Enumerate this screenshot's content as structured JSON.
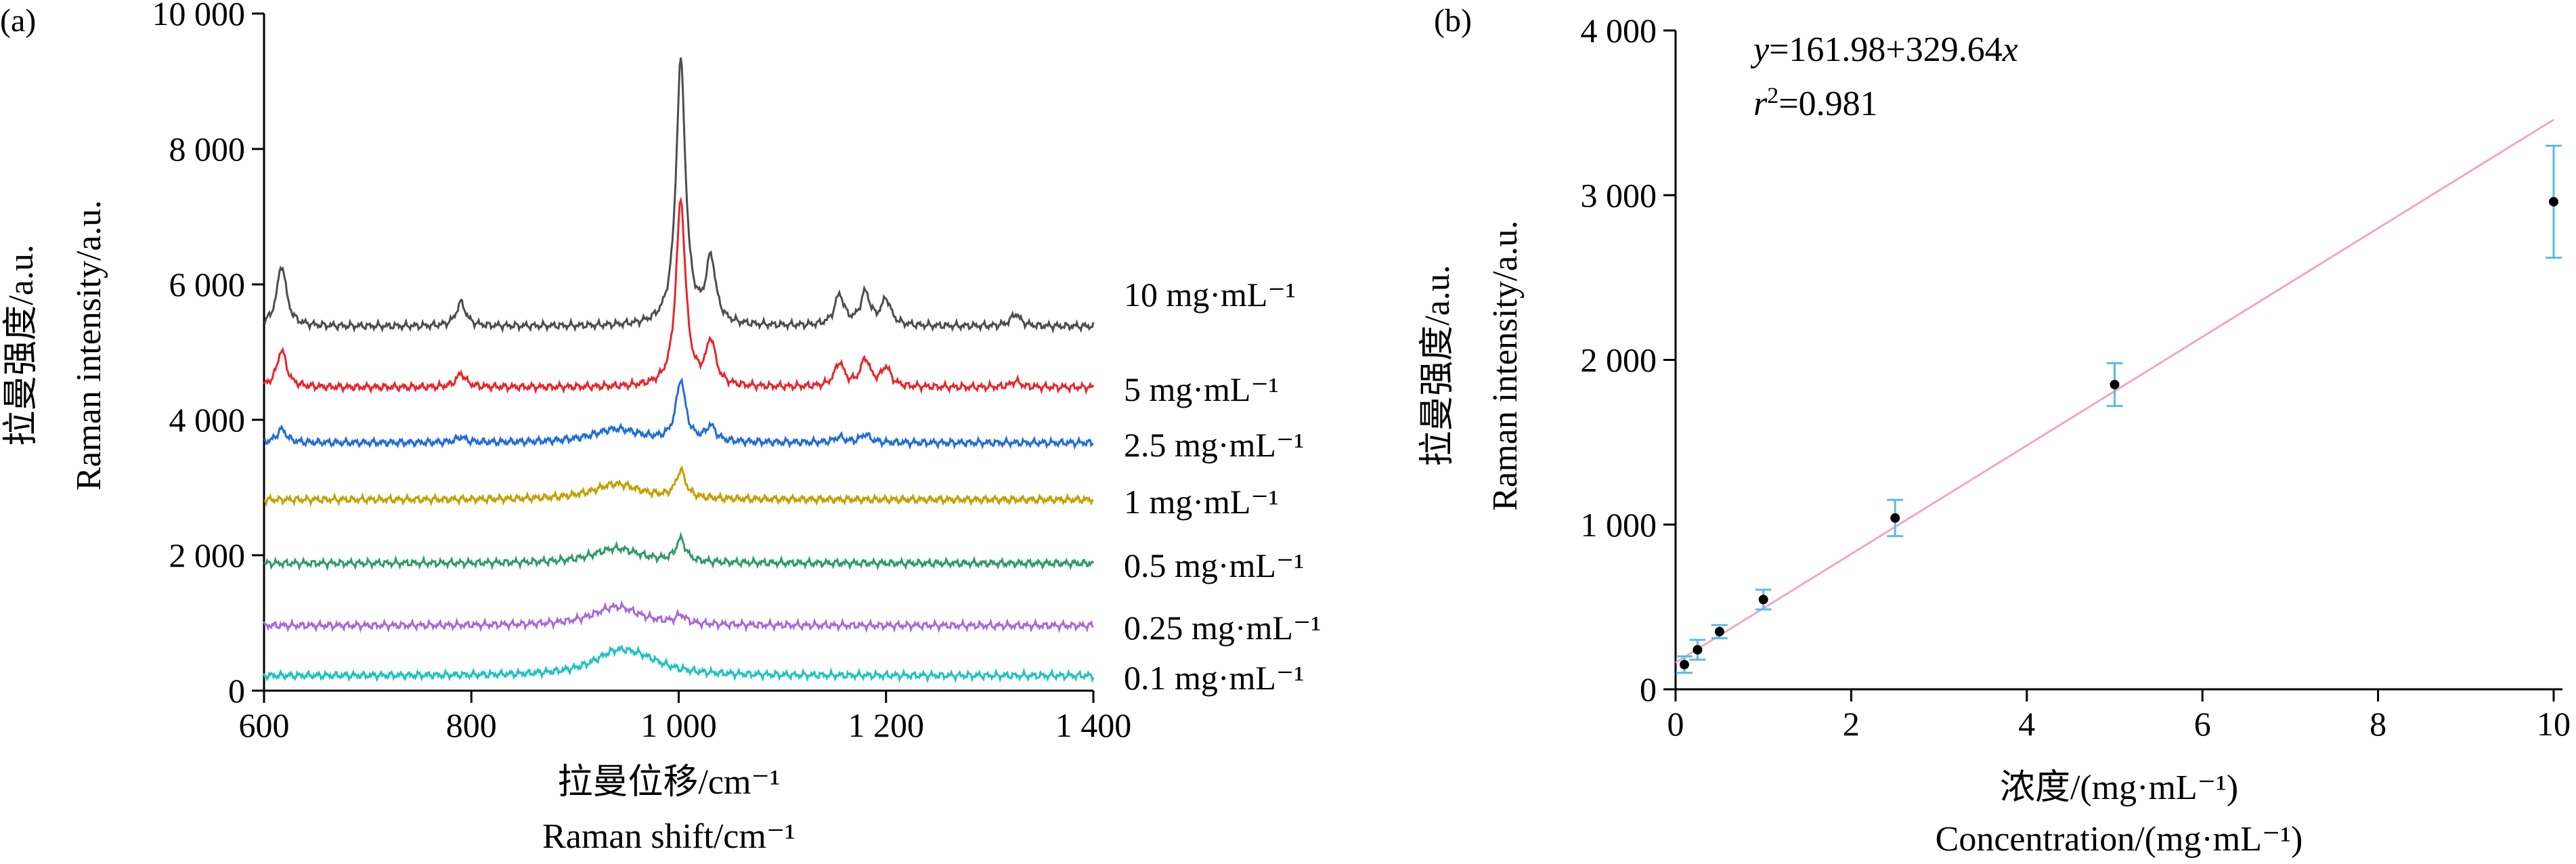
{
  "chart_data": [
    {
      "panel_label": "(a)",
      "type": "line",
      "ylabel_cn": "拉曼强度/a.u.",
      "ylabel_en": "Raman intensity/a.u.",
      "xlabel_cn": "拉曼位移/cm⁻¹",
      "xlabel_en": "Raman shift/cm⁻¹",
      "xlim": [
        600,
        1400
      ],
      "ylim": [
        0,
        10000
      ],
      "x_ticks": [
        600,
        800,
        1000,
        1200,
        1400
      ],
      "x_tick_labels": [
        "600",
        "800",
        "1 000",
        "1 200",
        "1 400"
      ],
      "y_ticks": [
        0,
        2000,
        4000,
        6000,
        8000,
        10000
      ],
      "y_tick_labels": [
        "0",
        "2 000",
        "4 000",
        "6 000",
        "8 000",
        "10 000"
      ],
      "peak_positions": [
        617,
        790,
        1002,
        1031,
        1155,
        1180,
        1200,
        1325
      ],
      "series": [
        {
          "name": "10 mg·mL⁻¹",
          "color": "#4d4d4d",
          "baseline": 5380,
          "peaks": [
            [
              617,
              900
            ],
            [
              790,
              350
            ],
            [
              1002,
              3900
            ],
            [
              1031,
              950
            ],
            [
              1155,
              450
            ],
            [
              1180,
              480
            ],
            [
              1200,
              380
            ],
            [
              1325,
              180
            ]
          ]
        },
        {
          "name": "5 mg·mL⁻¹",
          "color": "#e8262b",
          "baseline": 4480,
          "peaks": [
            [
              617,
              550
            ],
            [
              790,
              200
            ],
            [
              1002,
              2750
            ],
            [
              1031,
              650
            ],
            [
              1155,
              350
            ],
            [
              1180,
              400
            ],
            [
              1200,
              280
            ],
            [
              1325,
              90
            ]
          ]
        },
        {
          "name": "2.5 mg·mL⁻¹",
          "color": "#1f6fd6",
          "baseline": 3660,
          "peaks": [
            [
              617,
              200
            ],
            [
              790,
              80
            ],
            [
              940,
              200
            ],
            [
              1002,
              900
            ],
            [
              1031,
              220
            ],
            [
              1155,
              80
            ],
            [
              1180,
              120
            ]
          ]
        },
        {
          "name": "1 mg·mL⁻¹",
          "color": "#c4a000",
          "baseline": 2820,
          "peaks": [
            [
              940,
              230
            ],
            [
              1002,
              400
            ]
          ]
        },
        {
          "name": "0.5 mg·mL⁻¹",
          "color": "#2f9b6a",
          "baseline": 1880,
          "peaks": [
            [
              940,
              220
            ],
            [
              1002,
              330
            ]
          ]
        },
        {
          "name": "0.25 mg·mL⁻¹",
          "color": "#a66ad9",
          "baseline": 960,
          "peaks": [
            [
              940,
              280
            ],
            [
              1002,
              120
            ]
          ]
        },
        {
          "name": "0.1 mg·mL⁻¹",
          "color": "#20c2c2",
          "baseline": 220,
          "peaks": [
            [
              940,
              300
            ],
            [
              965,
              150
            ]
          ]
        }
      ]
    },
    {
      "panel_label": "(b)",
      "type": "scatter",
      "ylabel_cn": "拉曼强度/a.u.",
      "ylabel_en": "Raman intensity/a.u.",
      "xlabel_cn": "浓度/(mg·mL⁻¹)",
      "xlabel_en": "Concentration/(mg·mL⁻¹)",
      "xlim": [
        0,
        10
      ],
      "ylim": [
        0,
        4000
      ],
      "x_ticks": [
        0,
        2,
        4,
        6,
        8,
        10
      ],
      "x_tick_labels": [
        "0",
        "2",
        "4",
        "6",
        "8",
        "10"
      ],
      "y_ticks": [
        0,
        1000,
        2000,
        3000,
        4000
      ],
      "y_tick_labels": [
        "0",
        "1 000",
        "2 000",
        "3 000",
        "4 000"
      ],
      "points": [
        {
          "x": 0.1,
          "y": 150,
          "err": 50
        },
        {
          "x": 0.25,
          "y": 240,
          "err": 60
        },
        {
          "x": 0.5,
          "y": 350,
          "err": 40
        },
        {
          "x": 1,
          "y": 545,
          "err": 60
        },
        {
          "x": 2.5,
          "y": 1040,
          "err": 110
        },
        {
          "x": 5,
          "y": 1850,
          "err": 130
        },
        {
          "x": 10,
          "y": 2960,
          "err": 340
        }
      ],
      "fit": {
        "intercept": 161.98,
        "slope": 329.64,
        "x_range": [
          0,
          10
        ]
      },
      "fit_color": "#f2a6c9",
      "error_color": "#5bbbe8",
      "equation_y": "y",
      "equation_rest": "=161.98+329.64",
      "equation_x": "x",
      "r2_r": "r",
      "r2_sup": "2",
      "r2_value": "=0.981"
    }
  ]
}
